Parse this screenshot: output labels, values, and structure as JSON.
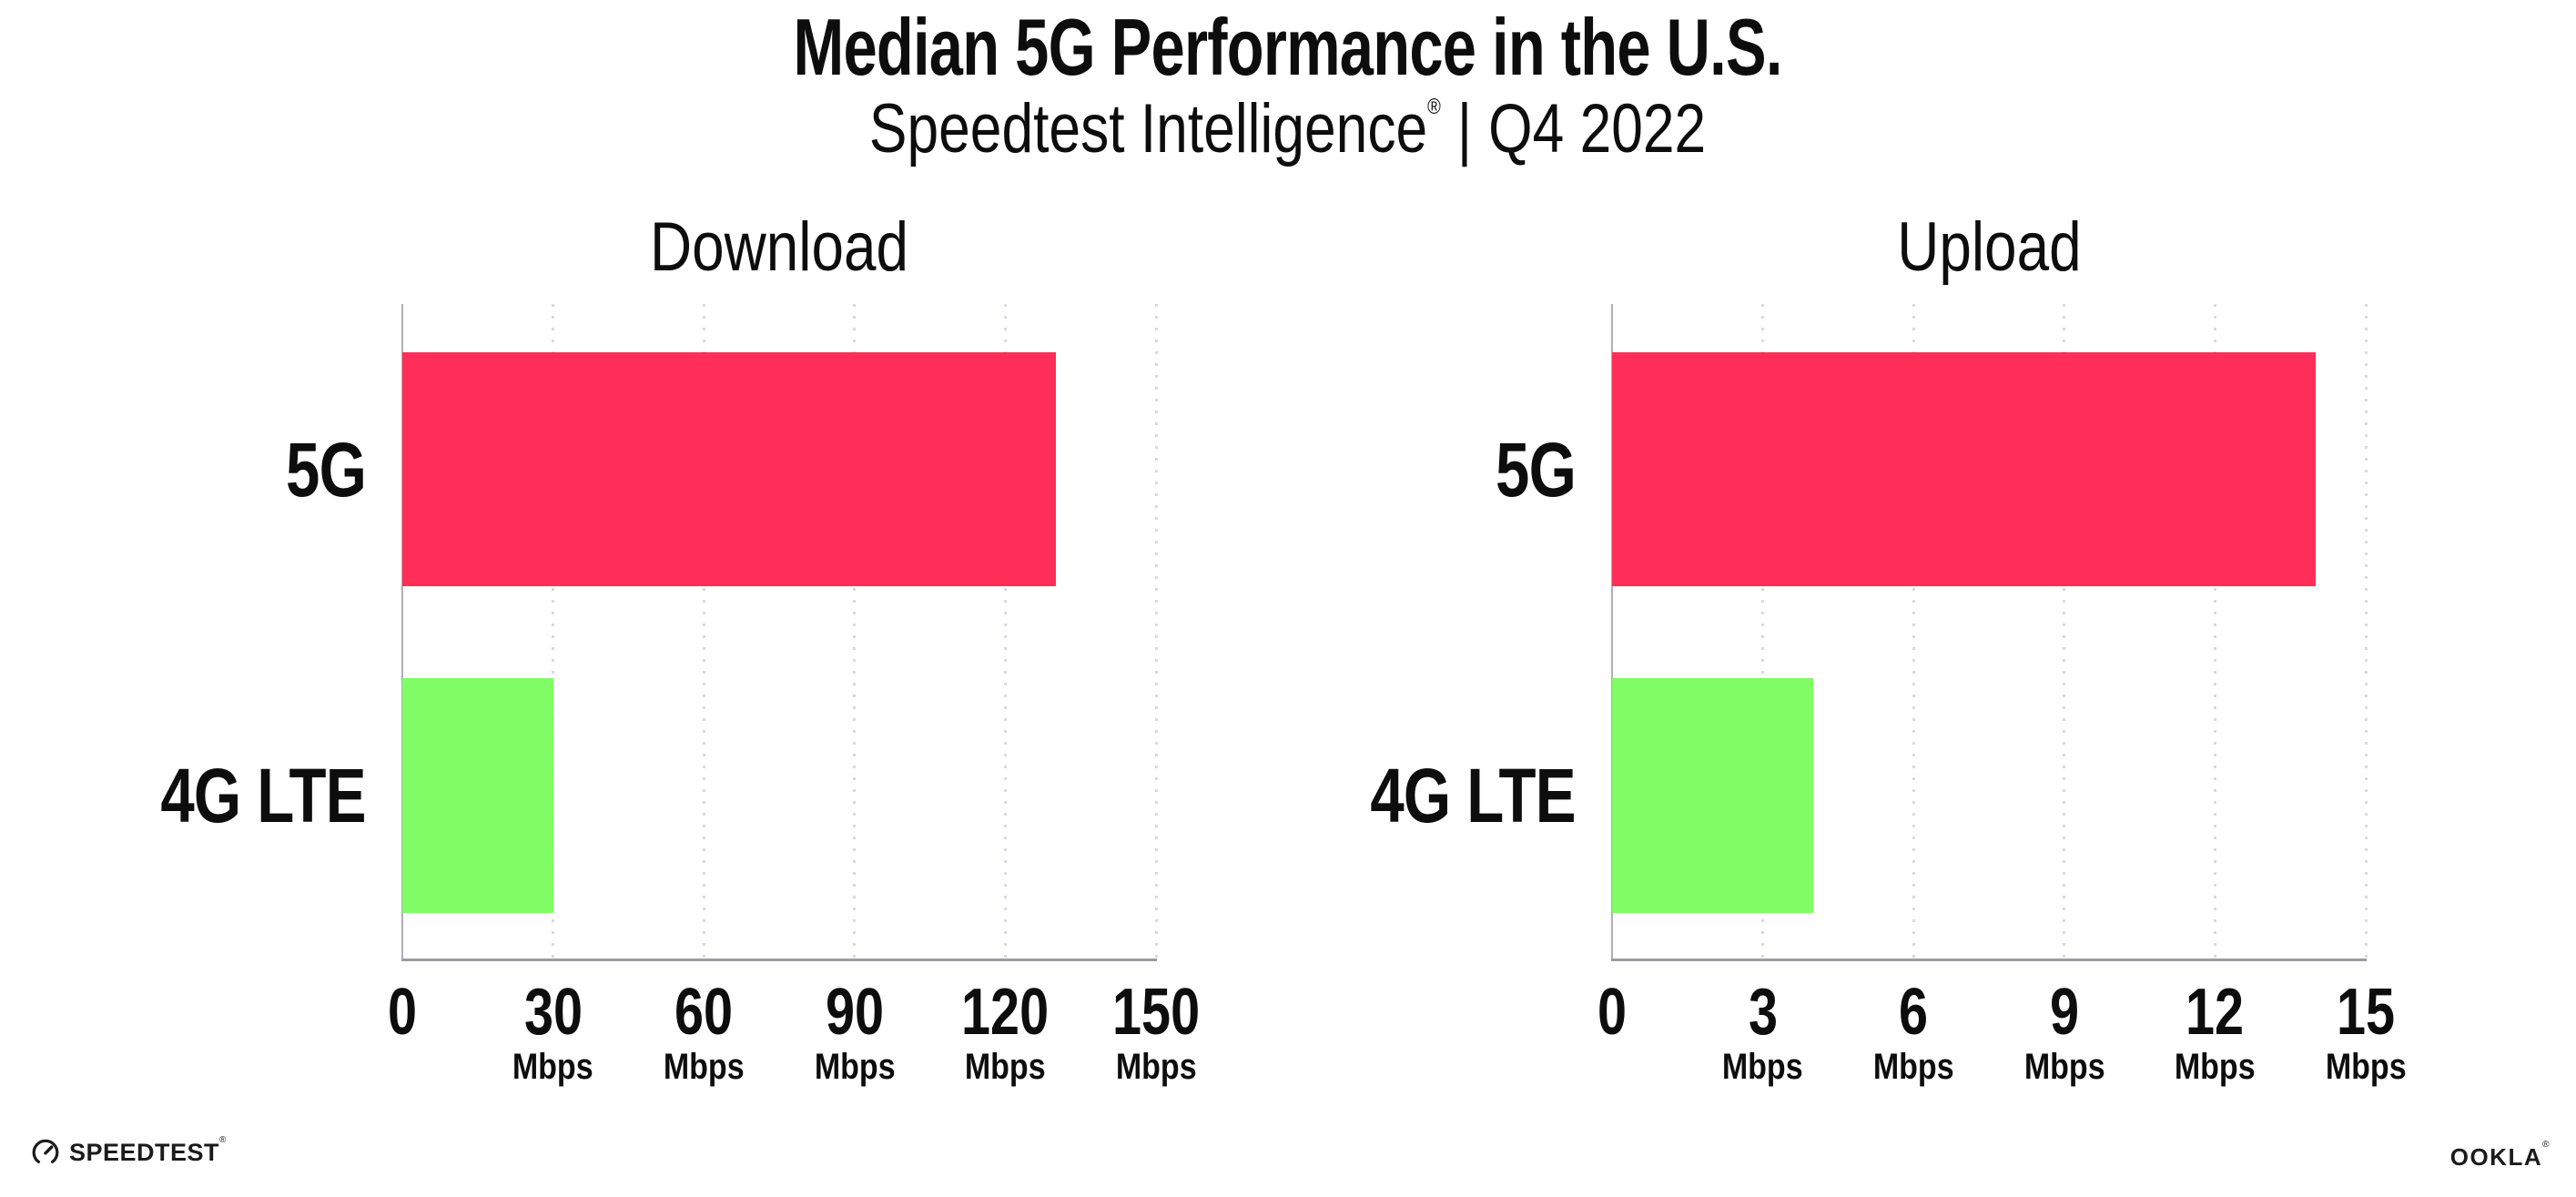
{
  "header": {
    "title": "Median 5G Performance in the U.S.",
    "subtitle_brand": "Speedtest Intelligence",
    "subtitle_reg": "®",
    "subtitle_divider": "|",
    "subtitle_period": "Q4 2022"
  },
  "footer": {
    "speedtest_label": "SPEEDTEST",
    "speedtest_reg": "®",
    "ookla_label": "OOKLA",
    "ookla_reg": "®"
  },
  "colors": {
    "bar_5g": "#FF2E59",
    "bar_4g_lte": "#80FC64",
    "x_axis": "#9A9AA2",
    "y_axis": "#AFAFB7",
    "gridline": "#D9D9E3",
    "text": "#0D0D0D"
  },
  "chart_data": [
    {
      "type": "bar",
      "orientation": "horizontal",
      "title": "Download",
      "categories": [
        "5G",
        "4G LTE"
      ],
      "values": [
        130,
        30
      ],
      "unit": "Mbps",
      "xlabel": "",
      "ylabel": "",
      "xlim": [
        0,
        150
      ],
      "xticks": [
        0,
        30,
        60,
        90,
        120,
        150
      ],
      "series_colors": [
        "#FF2E59",
        "#80FC64"
      ],
      "grid": "dotted-vertical",
      "legend": "none"
    },
    {
      "type": "bar",
      "orientation": "horizontal",
      "title": "Upload",
      "categories": [
        "5G",
        "4G LTE"
      ],
      "values": [
        14,
        4
      ],
      "unit": "Mbps",
      "xlabel": "",
      "ylabel": "",
      "xlim": [
        0,
        15
      ],
      "xticks": [
        0,
        3,
        6,
        9,
        12,
        15
      ],
      "series_colors": [
        "#FF2E59",
        "#80FC64"
      ],
      "grid": "dotted-vertical",
      "legend": "none"
    }
  ]
}
